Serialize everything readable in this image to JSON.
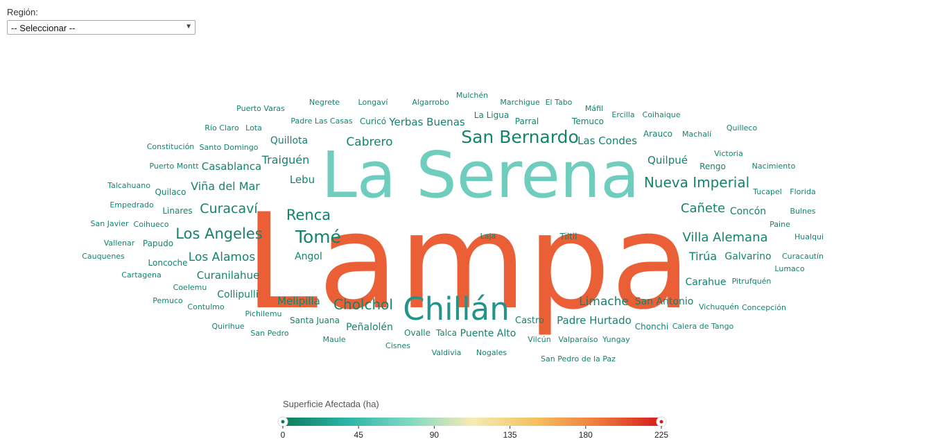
{
  "filter": {
    "label": "Región:",
    "selected": "-- Seleccionar --"
  },
  "legend": {
    "title": "Superficie Afectada (ha)",
    "ticks": [
      "0",
      "45",
      "90",
      "135",
      "180",
      "225"
    ],
    "min": 0,
    "max": 225,
    "gradient": [
      "#0e7b5c",
      "#2ab3a6",
      "#7fd8c5",
      "#f5ecb4",
      "#f6c060",
      "#ee7a3c",
      "#d7191c"
    ]
  },
  "chart_data": {
    "type": "wordcloud",
    "value_label": "Superficie Afectada (ha)",
    "words": [
      {
        "text": "Lampa",
        "value": 225
      },
      {
        "text": "La Serena",
        "value": 100
      },
      {
        "text": "Chillán",
        "value": 70
      },
      {
        "text": "San Bernardo",
        "value": 44
      },
      {
        "text": "Nueva Imperial",
        "value": 36
      },
      {
        "text": "Curacaví",
        "value": 34
      },
      {
        "text": "Los Angeles",
        "value": 38
      },
      {
        "text": "Tomé",
        "value": 40
      },
      {
        "text": "Renca",
        "value": 34
      },
      {
        "text": "Cholchol",
        "value": 34
      },
      {
        "text": "Villa Alemana",
        "value": 30
      },
      {
        "text": "Cabrero",
        "value": 28
      },
      {
        "text": "Viña del Mar",
        "value": 26
      },
      {
        "text": "Los Alamos",
        "value": 26
      },
      {
        "text": "Cañete",
        "value": 30
      },
      {
        "text": "Limache",
        "value": 27
      },
      {
        "text": "Traiguén",
        "value": 24
      },
      {
        "text": "Casablanca",
        "value": 22
      },
      {
        "text": "Yerbas Buenas",
        "value": 22
      },
      {
        "text": "Las Condes",
        "value": 22
      },
      {
        "text": "Quilpué",
        "value": 24
      },
      {
        "text": "Tirúa",
        "value": 24
      },
      {
        "text": "Lebu",
        "value": 22
      },
      {
        "text": "Melipilla",
        "value": 22
      },
      {
        "text": "Curanilahue",
        "value": 22
      },
      {
        "text": "Padre Hurtado",
        "value": 22
      },
      {
        "text": "San Antonio",
        "value": 22
      },
      {
        "text": "Carahue",
        "value": 22
      },
      {
        "text": "Peñalolén",
        "value": 22
      },
      {
        "text": "Puente Alto",
        "value": 22
      },
      {
        "text": "Galvarino",
        "value": 22
      },
      {
        "text": "Quillota",
        "value": 20
      },
      {
        "text": "Collipulli",
        "value": 20
      },
      {
        "text": "Angol",
        "value": 20
      },
      {
        "text": "Concón",
        "value": 20
      },
      {
        "text": "Castro",
        "value": 20
      },
      {
        "text": "Santa Juana",
        "value": 18
      },
      {
        "text": "Ovalle",
        "value": 18
      },
      {
        "text": "Talca",
        "value": 18
      },
      {
        "text": "Curicó",
        "value": 18
      },
      {
        "text": "Rengo",
        "value": 18
      },
      {
        "text": "Arauco",
        "value": 18
      },
      {
        "text": "Temuco",
        "value": 18
      },
      {
        "text": "Parral",
        "value": 18
      },
      {
        "text": "La Ligua",
        "value": 18
      },
      {
        "text": "Loncoche",
        "value": 18
      },
      {
        "text": "Tiltil",
        "value": 18
      },
      {
        "text": "Laja",
        "value": 16
      },
      {
        "text": "Papudo",
        "value": 18
      },
      {
        "text": "Quilaco",
        "value": 18
      },
      {
        "text": "Linares",
        "value": 18
      },
      {
        "text": "Chonchi",
        "value": 18
      },
      {
        "text": "Santo Domingo",
        "value": 16
      },
      {
        "text": "Padre Las Casas",
        "value": 16
      },
      {
        "text": "Pitrufquén",
        "value": 16
      },
      {
        "text": "Valparaíso",
        "value": 16
      },
      {
        "text": "Vichuquén",
        "value": 16
      },
      {
        "text": "Calera de Tango",
        "value": 16
      },
      {
        "text": "Algarrobo",
        "value": 16
      },
      {
        "text": "Marchigue",
        "value": 16
      },
      {
        "text": "Negrete",
        "value": 14
      },
      {
        "text": "Longaví",
        "value": 14
      },
      {
        "text": "Mulchén",
        "value": 14
      },
      {
        "text": "El Tabo",
        "value": 14
      },
      {
        "text": "Máfil",
        "value": 14
      },
      {
        "text": "Ercilla",
        "value": 14
      },
      {
        "text": "Coihaique",
        "value": 14
      },
      {
        "text": "Puerto Varas",
        "value": 14
      },
      {
        "text": "Río Claro",
        "value": 14
      },
      {
        "text": "Lota",
        "value": 14
      },
      {
        "text": "Machalí",
        "value": 14
      },
      {
        "text": "Quilleco",
        "value": 14
      },
      {
        "text": "Constitución",
        "value": 14
      },
      {
        "text": "Victoria",
        "value": 14
      },
      {
        "text": "Puerto Montt",
        "value": 14
      },
      {
        "text": "Nacimiento",
        "value": 14
      },
      {
        "text": "Talcahuano",
        "value": 14
      },
      {
        "text": "Tucapel",
        "value": 14
      },
      {
        "text": "Florida",
        "value": 14
      },
      {
        "text": "Empedrado",
        "value": 14
      },
      {
        "text": "Bulnes",
        "value": 14
      },
      {
        "text": "San Javier",
        "value": 14
      },
      {
        "text": "Coihueco",
        "value": 14
      },
      {
        "text": "Paine",
        "value": 14
      },
      {
        "text": "Vallenar",
        "value": 14
      },
      {
        "text": "Hualqui",
        "value": 14
      },
      {
        "text": "Cauquenes",
        "value": 14
      },
      {
        "text": "Curacautín",
        "value": 14
      },
      {
        "text": "Lumaco",
        "value": 14
      },
      {
        "text": "Cartagena",
        "value": 14
      },
      {
        "text": "Coelemu",
        "value": 14
      },
      {
        "text": "Pemuco",
        "value": 14
      },
      {
        "text": "Contulmo",
        "value": 14
      },
      {
        "text": "Concepción",
        "value": 14
      },
      {
        "text": "Pichilemu",
        "value": 14
      },
      {
        "text": "Quirihue",
        "value": 14
      },
      {
        "text": "San Pedro",
        "value": 14
      },
      {
        "text": "Maule",
        "value": 14
      },
      {
        "text": "Cisnes",
        "value": 14
      },
      {
        "text": "Valdivia",
        "value": 14
      },
      {
        "text": "Nogales",
        "value": 14
      },
      {
        "text": "Vilcún",
        "value": 14
      },
      {
        "text": "Yungay",
        "value": 14
      },
      {
        "text": "San Pedro de la Paz",
        "value": 14
      }
    ]
  }
}
